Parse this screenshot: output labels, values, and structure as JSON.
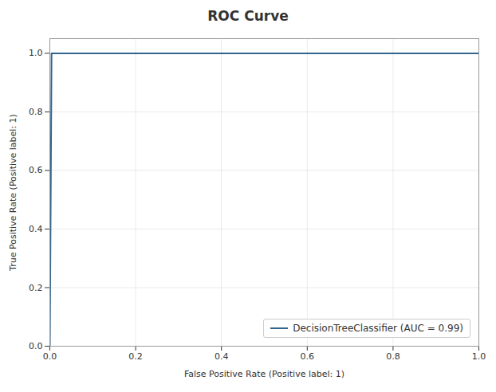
{
  "chart_data": {
    "type": "line",
    "title": "ROC Curve",
    "xlabel": "False Positive Rate (Positive label: 1)",
    "ylabel": "True Positive Rate (Positive label: 1)",
    "x": [
      0.0,
      0.004,
      0.01,
      1.0
    ],
    "series": [
      {
        "name": "DecisionTreeClassifier (AUC = 0.99)",
        "color": "#31658e",
        "values": [
          0.0,
          1.0,
          1.0,
          1.0
        ]
      }
    ],
    "xlim": [
      0.0,
      1.0
    ],
    "ylim": [
      0.0,
      1.05
    ],
    "xticks": [
      {
        "value": 0,
        "label": "0.0"
      },
      0.2,
      0.4,
      0.6,
      0.8,
      {
        "value": 1,
        "label": "1.0"
      }
    ],
    "yticks": [
      {
        "value": 0,
        "label": "0.0"
      },
      0.2,
      0.4,
      0.6,
      0.8,
      {
        "value": 1,
        "label": "1.0"
      }
    ],
    "grid": true,
    "legend": "lower right"
  }
}
